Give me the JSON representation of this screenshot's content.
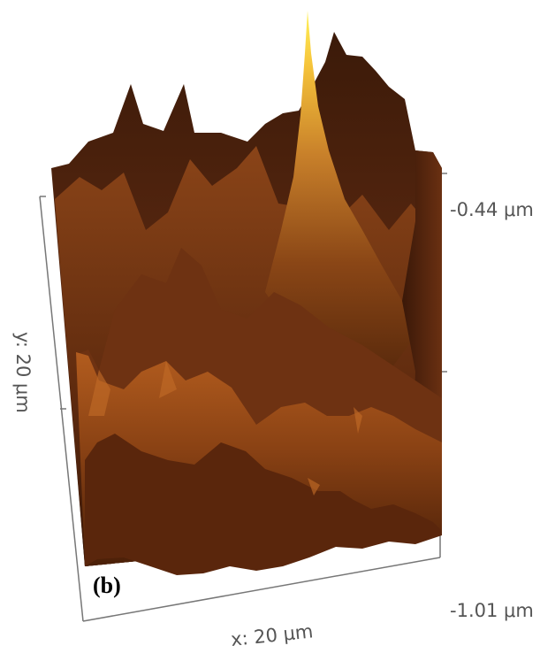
{
  "panel_label": "(b)",
  "x_axis_label": "x: 20 μm",
  "y_axis_label": "y: 20 μm",
  "z_axis_top_label": "-0.44 μm",
  "z_axis_bottom_label": "-1.01 μm",
  "colors": {
    "surface_dark": "#2a1206",
    "surface_mid": "#7a3510",
    "surface_light": "#b0581c",
    "peak_highlight": "#ffe64a",
    "axis_line": "#777777"
  }
}
